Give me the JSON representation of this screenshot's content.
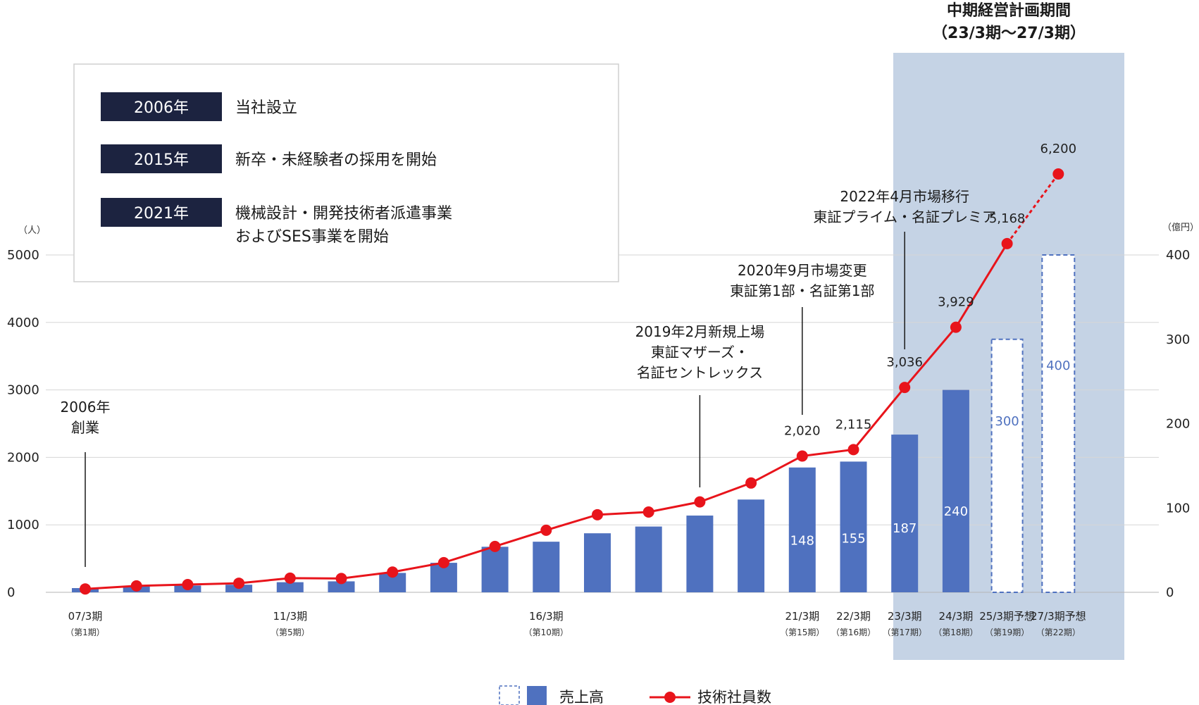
{
  "chart_data": {
    "type": "bar",
    "title": "中期経営計画期間",
    "subtitle": "（23/3期〜27/3期）",
    "y_left_unit": "（人）",
    "y_right_unit": "（億円）",
    "y_left_ticks": [
      "0",
      "1000",
      "2000",
      "3000",
      "4000",
      "5000"
    ],
    "y_right_ticks": [
      "0",
      "100",
      "200",
      "300",
      "400"
    ],
    "ylim_left": [
      0,
      5000
    ],
    "ylim_right": [
      0,
      400
    ],
    "grid": true,
    "legend_position": "bottom-center",
    "colors": {
      "bar": "#4f71bf",
      "line": "#e8141b",
      "plan_band": "#c5d3e5",
      "forecast_outline": "#4f71bf"
    },
    "x_labels": [
      {
        "index": 0,
        "line1": "07/3期",
        "line2": "（第1期）"
      },
      {
        "index": 4,
        "line1": "11/3期",
        "line2": "（第5期）"
      },
      {
        "index": 9,
        "line1": "16/3期",
        "line2": "（第10期）"
      },
      {
        "index": 14,
        "line1": "21/3期",
        "line2": "（第15期）"
      },
      {
        "index": 15,
        "line1": "22/3期",
        "line2": "（第16期）"
      },
      {
        "index": 16,
        "line1": "23/3期",
        "line2": "（第17期）"
      },
      {
        "index": 17,
        "line1": "24/3期",
        "line2": "（第18期）"
      },
      {
        "index": 18,
        "line1": "25/3期予想",
        "line2": "（第19期）"
      },
      {
        "index": 19,
        "line1": "27/3期予想",
        "line2": "（第22期）"
      }
    ],
    "series": [
      {
        "name": "売上高",
        "axis": "right",
        "values": [
          5,
          7,
          8,
          9,
          12,
          13,
          23,
          35,
          54,
          60,
          70,
          78,
          91,
          110,
          148,
          155,
          187,
          240,
          300,
          400
        ],
        "forecast": [
          false,
          false,
          false,
          false,
          false,
          false,
          false,
          false,
          false,
          false,
          false,
          false,
          false,
          false,
          false,
          false,
          false,
          false,
          true,
          true
        ],
        "data_labels": [
          null,
          null,
          null,
          null,
          null,
          null,
          null,
          null,
          null,
          null,
          null,
          null,
          null,
          null,
          "148",
          "155",
          "187",
          "240",
          "300",
          "400"
        ]
      },
      {
        "name": "技術社員数",
        "axis": "left",
        "values": [
          50,
          95,
          115,
          135,
          210,
          205,
          300,
          440,
          680,
          920,
          1150,
          1190,
          1340,
          1620,
          2020,
          2115,
          3036,
          3929,
          5168,
          6200
        ],
        "data_labels": [
          null,
          null,
          null,
          null,
          null,
          null,
          null,
          null,
          null,
          null,
          null,
          null,
          null,
          null,
          "2,020",
          "2,115",
          "3,036",
          "3,929",
          "5,168",
          "6,200"
        ],
        "dashed_last_segment": true
      }
    ],
    "annotations": [
      {
        "index": 0,
        "lines": [
          "2006年",
          "創業"
        ]
      },
      {
        "index": 12,
        "lines": [
          "2019年2月新規上場",
          "東証マザーズ・",
          "名証セントレックス"
        ]
      },
      {
        "index": 14,
        "lines": [
          "2020年9月市場変更",
          "東証第1部・名証第1部"
        ]
      },
      {
        "index": 16,
        "lines": [
          "2022年4月市場移行",
          "東証プライム・名証プレミア"
        ]
      }
    ]
  },
  "history": {
    "items": [
      {
        "year": "2006年",
        "lines": [
          "当社設立"
        ]
      },
      {
        "year": "2015年",
        "lines": [
          "新卒・未経験者の採用を開始"
        ]
      },
      {
        "year": "2021年",
        "lines": [
          "機械設計・開発技術者派遣事業",
          "およびSES事業を開始"
        ]
      }
    ]
  },
  "legend": {
    "items": [
      {
        "label": "売上高",
        "icon": "bar-swatch-icon"
      },
      {
        "label": "技術社員数",
        "icon": "line-marker-icon"
      }
    ]
  }
}
